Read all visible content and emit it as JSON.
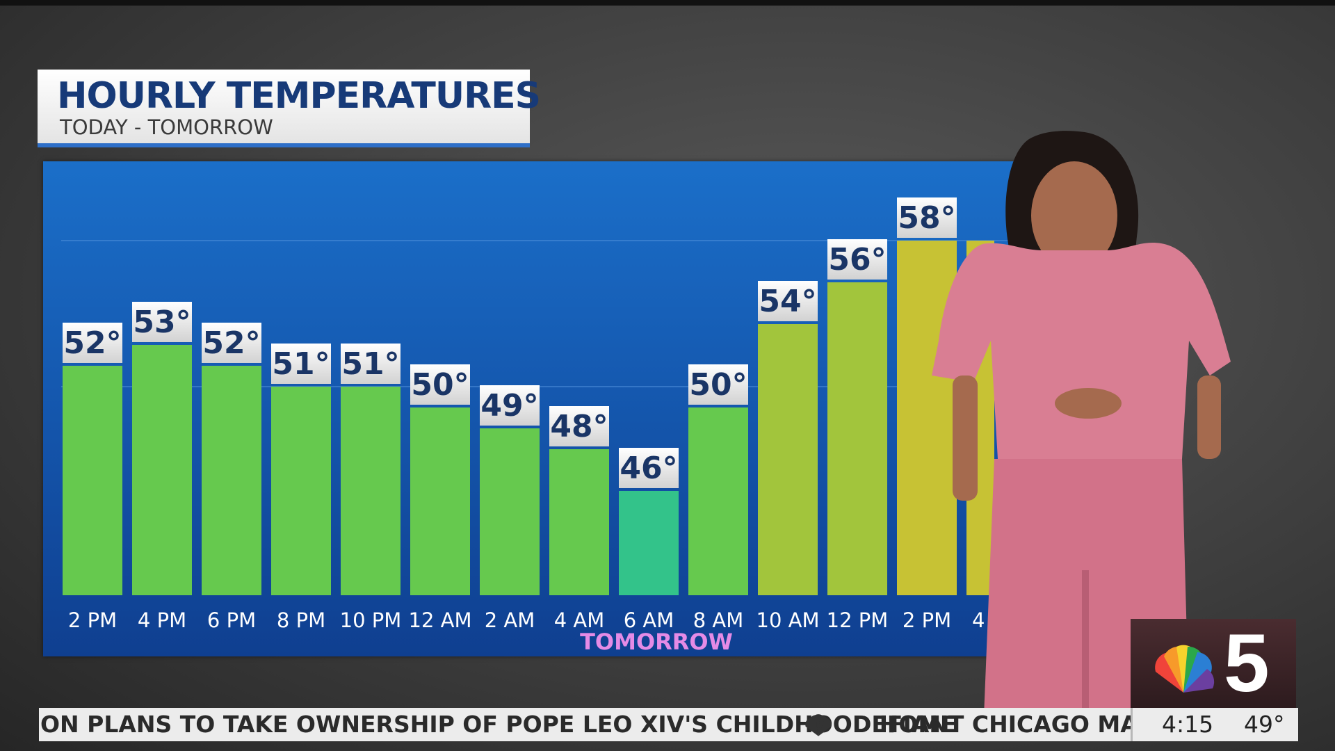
{
  "header": {
    "title": "HOURLY TEMPERATURES",
    "subtitle": "TODAY - TOMORROW"
  },
  "chart_data": {
    "type": "bar",
    "categories": [
      "2 PM",
      "4 PM",
      "6 PM",
      "8 PM",
      "10 PM",
      "12 AM",
      "2 AM",
      "4 AM",
      "6 AM",
      "8 AM",
      "10 AM",
      "12 PM",
      "2 PM",
      "4"
    ],
    "values": [
      52,
      53,
      52,
      51,
      51,
      50,
      49,
      48,
      46,
      50,
      54,
      56,
      58,
      null
    ],
    "data_labels": [
      "52°",
      "53°",
      "52°",
      "51°",
      "51°",
      "50°",
      "49°",
      "48°",
      "46°",
      "50°",
      "54°",
      "56°",
      "58°",
      ""
    ],
    "annotation": "TOMORROW",
    "ylim": [
      41,
      60
    ],
    "grid": true,
    "colors": {
      "cool": "#33c38a",
      "mild": "#66c94e",
      "warm": "#a2c53c",
      "hot": "#c7c234",
      "label_text": "#1a3566"
    }
  },
  "ticker": {
    "headline_left": "ON PLANS TO TAKE OWNERSHIP OF POPE LEO XIV'S CHILDHOOD HOME",
    "headline_right": "DEFIANT CHICAGO MAYOR",
    "time": "4:15",
    "temperature": "49°"
  },
  "station": {
    "channel": "5"
  }
}
